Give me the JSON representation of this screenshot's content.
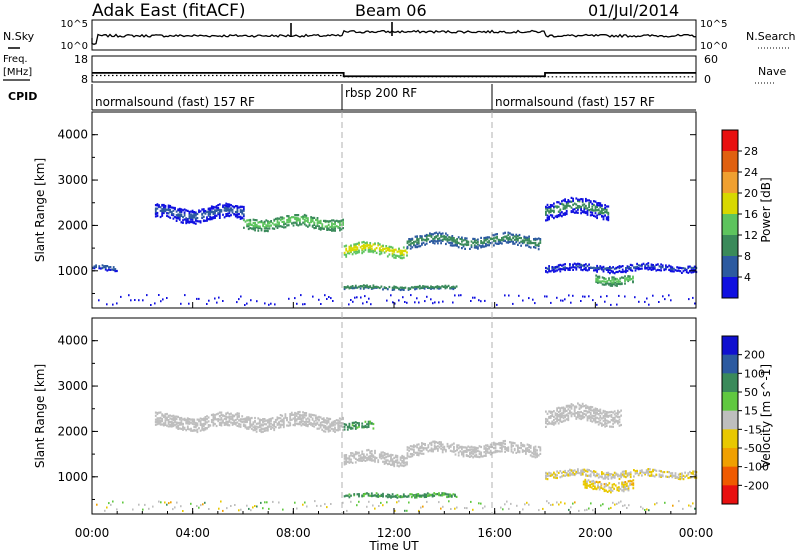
{
  "header": {
    "station": "Adak East (fitACF)",
    "beam": "Beam 06",
    "date": "01/Jul/2014"
  },
  "scan_panel": {
    "left_label": "N.Sky",
    "right_label": "N.Search",
    "left_ticks": [
      "10^5",
      "10^0"
    ],
    "right_ticks": [
      "10^5",
      "10^0"
    ]
  },
  "freq_panel": {
    "left_label_1": "Freq.",
    "left_label_2": "[MHz]",
    "right_label": "Nave",
    "left_ticks": [
      "18",
      "8"
    ],
    "right_ticks": [
      "60",
      "0"
    ],
    "freq_steps": [
      {
        "start": "00:00",
        "end": "10:00",
        "value": 11.5
      },
      {
        "start": "10:00",
        "end": "18:00",
        "value": 10.2
      },
      {
        "start": "18:00",
        "end": "24:00",
        "value": 11.5
      }
    ],
    "nave_steps": [
      {
        "start": "00:00",
        "end": "10:00",
        "value": 15
      },
      {
        "start": "10:00",
        "end": "24:00",
        "value": 12
      }
    ]
  },
  "cpid": {
    "label": "CPID",
    "segments": [
      {
        "text": "normalsound (fast) 157 RF",
        "start": "00:00"
      },
      {
        "text": "rbsp 200 RF",
        "start": "10:00"
      },
      {
        "text": "normalsound (fast) 157 RF",
        "start": "16:00"
      }
    ]
  },
  "x_axis": {
    "label": "Time UT",
    "ticks": [
      "00:00",
      "04:00",
      "08:00",
      "12:00",
      "16:00",
      "20:00",
      "00:00"
    ]
  },
  "colors": {
    "power": [
      "#1010e0",
      "#2c5aa0",
      "#3a8a5a",
      "#5ec45e",
      "#d8d800",
      "#f0a030",
      "#e06010",
      "#e81010"
    ],
    "velocity": [
      "#1010d0",
      "#2c5aa0",
      "#3a8a5a",
      "#60c840",
      "#bebebe",
      "#e8c800",
      "#f0a000",
      "#ef5a00",
      "#e81010"
    ]
  },
  "chart_data": [
    {
      "type": "heatmap",
      "title": "Adak East (fitACF)",
      "ylabel": "Slant Range [km]",
      "xlabel": "",
      "yticks": [
        "1000",
        "2000",
        "3000",
        "4000"
      ],
      "ylim": [
        180,
        4500
      ],
      "xlim": [
        "00:00",
        "24:00"
      ],
      "colorbar": {
        "label": "Power [dB]",
        "ticks": [
          "4",
          "8",
          "12",
          "16",
          "20",
          "24",
          "28"
        ],
        "range": [
          0,
          30
        ]
      },
      "bands": [
        {
          "start": "00:00",
          "end": "01:00",
          "range_km": 1100,
          "width_km": 100,
          "level": 6
        },
        {
          "start": "02:30",
          "end": "06:00",
          "range_km": 2300,
          "width_km": 300,
          "level": 6
        },
        {
          "start": "06:00",
          "end": "10:00",
          "range_km": 2100,
          "width_km": 250,
          "level": 14
        },
        {
          "start": "10:00",
          "end": "12:30",
          "range_km": 1500,
          "width_km": 250,
          "level": 18
        },
        {
          "start": "10:00",
          "end": "14:30",
          "range_km": 660,
          "width_km": 60,
          "level": 10
        },
        {
          "start": "12:30",
          "end": "17:50",
          "range_km": 1700,
          "width_km": 250,
          "level": 10
        },
        {
          "start": "18:00",
          "end": "20:30",
          "range_km": 2400,
          "width_km": 350,
          "level": 8
        },
        {
          "start": "18:00",
          "end": "24:00",
          "range_km": 1100,
          "width_km": 150,
          "level": 6
        },
        {
          "start": "20:00",
          "end": "21:30",
          "range_km": 850,
          "width_km": 200,
          "level": 14
        }
      ]
    },
    {
      "type": "heatmap",
      "ylabel": "Slant Range [km]",
      "xlabel": "Time UT",
      "yticks": [
        "1000",
        "2000",
        "3000",
        "4000"
      ],
      "ylim": [
        180,
        4500
      ],
      "xlim": [
        "00:00",
        "24:00"
      ],
      "colorbar": {
        "label": "Velocity [m s^-1]",
        "ticks": [
          "200",
          "100",
          "50",
          "15",
          "-15",
          "-50",
          "-100",
          "-200"
        ],
        "range": [
          -250,
          250
        ]
      },
      "bands": [
        {
          "start": "02:30",
          "end": "10:00",
          "range_km": 2250,
          "width_km": 300,
          "velocity": 0
        },
        {
          "start": "10:00",
          "end": "11:10",
          "range_km": 2150,
          "width_km": 150,
          "velocity": 40
        },
        {
          "start": "10:00",
          "end": "12:30",
          "range_km": 1450,
          "width_km": 250,
          "velocity": 0
        },
        {
          "start": "10:00",
          "end": "14:30",
          "range_km": 620,
          "width_km": 60,
          "velocity": 40
        },
        {
          "start": "12:30",
          "end": "17:50",
          "range_km": 1650,
          "width_km": 250,
          "velocity": 0
        },
        {
          "start": "18:00",
          "end": "21:00",
          "range_km": 2400,
          "width_km": 350,
          "velocity": 0
        },
        {
          "start": "18:00",
          "end": "24:00",
          "range_km": 1100,
          "width_km": 150,
          "velocity": -10
        },
        {
          "start": "19:30",
          "end": "21:30",
          "range_km": 850,
          "width_km": 200,
          "velocity": -20
        }
      ]
    }
  ]
}
